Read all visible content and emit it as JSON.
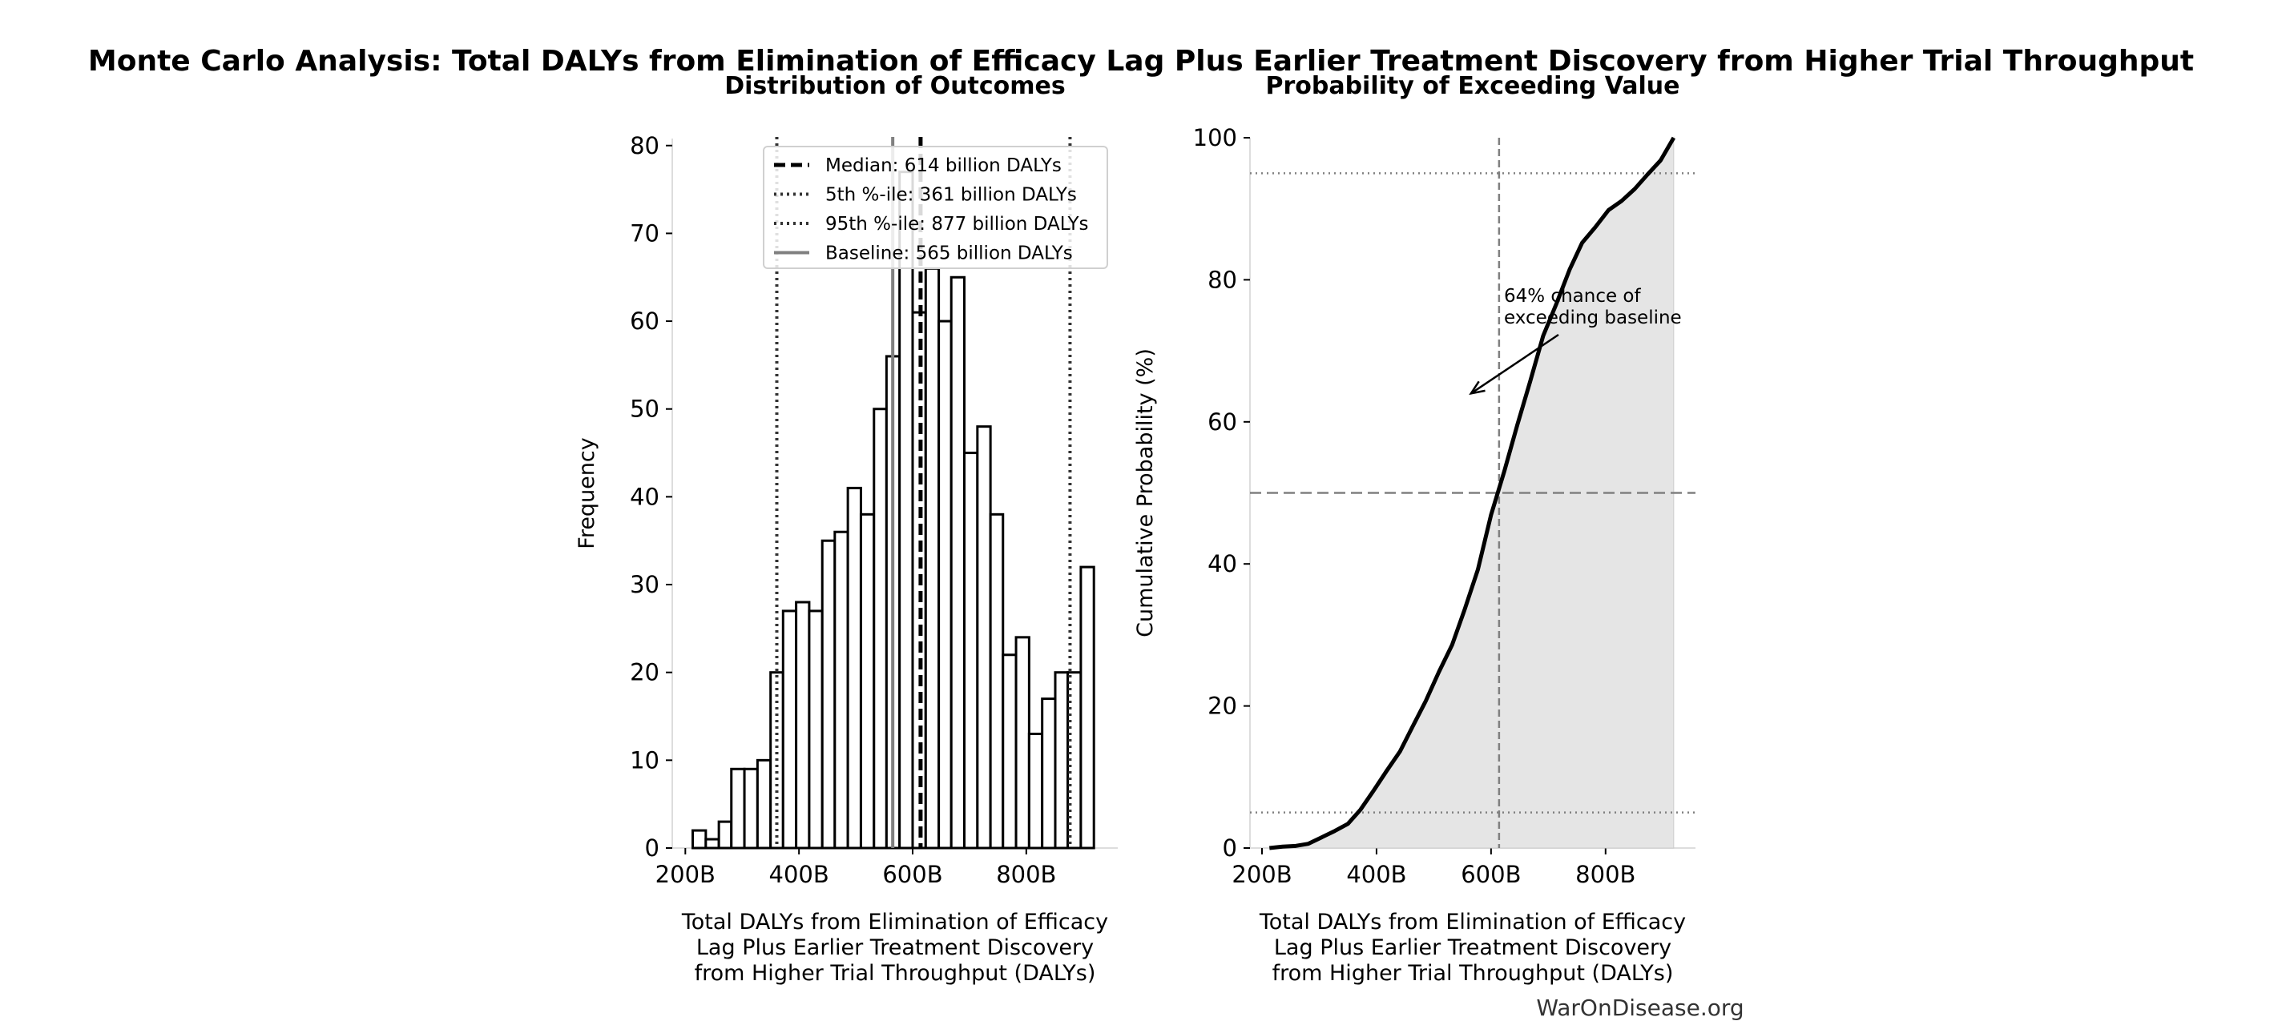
{
  "title": "Monte Carlo Analysis: Total DALYs from Elimination of Efficacy Lag Plus Earlier Treatment Discovery from Higher Trial Throughput",
  "watermark": "WarOnDisease.org",
  "colors": {
    "bar_edge": "#000000",
    "bar_fill": "#ffffff",
    "baseline": "#808080",
    "cdf_fill": "#e5e5e5",
    "ref_lines": "#808080"
  },
  "chart_data": [
    {
      "type": "bar",
      "subtype": "histogram",
      "title": "Distribution of Outcomes",
      "xlabel": "Total DALYs from Elimination of Efficacy Lag Plus Earlier Treatment Discovery from Higher Trial Throughput (DALYs)",
      "ylabel": "Frequency",
      "xlim": [
        177,
        961
      ],
      "ylim": [
        0,
        80.8
      ],
      "xticks": [
        200,
        400,
        600,
        800
      ],
      "xtick_labels": [
        "200B",
        "400B",
        "600B",
        "800B"
      ],
      "yticks": [
        0,
        10,
        20,
        30,
        40,
        50,
        60,
        70,
        80
      ],
      "ytick_labels": [
        "0",
        "10",
        "20",
        "30",
        "40",
        "50",
        "60",
        "70",
        "80"
      ],
      "bin_edges": [
        213,
        236,
        259,
        281,
        304,
        327,
        350,
        372,
        395,
        418,
        441,
        463,
        486,
        509,
        532,
        554,
        577,
        600,
        623,
        646,
        668,
        691,
        714,
        737,
        759,
        782,
        805,
        828,
        851,
        873,
        896,
        919
      ],
      "values": [
        2,
        1,
        3,
        9,
        9,
        10,
        20,
        27,
        28,
        27,
        35,
        36,
        41,
        38,
        50,
        56,
        77,
        61,
        66,
        60,
        65,
        45,
        48,
        38,
        22,
        24,
        13,
        17,
        20,
        20,
        32
      ],
      "vlines": [
        {
          "x": 614,
          "style": "dashed",
          "color": "#000000",
          "label": "Median: 614 billion DALYs"
        },
        {
          "x": 361,
          "style": "dotted",
          "color": "#333333",
          "label": "5th %-ile: 361 billion DALYs"
        },
        {
          "x": 877,
          "style": "dotted",
          "color": "#333333",
          "label": "95th %-ile: 877 billion DALYs"
        },
        {
          "x": 565,
          "style": "solid",
          "color": "#808080",
          "label": "Baseline: 565 billion DALYs"
        }
      ],
      "legend": "top-right",
      "grid": false
    },
    {
      "type": "area",
      "subtype": "cdf",
      "title": "Probability of Exceeding Value",
      "xlabel": "Total DALYs from Elimination of Efficacy Lag Plus Earlier Treatment Discovery from Higher Trial Throughput (DALYs)",
      "ylabel": "Cumulative Probability (%)",
      "xlim": [
        179,
        957
      ],
      "ylim": [
        0,
        100
      ],
      "xticks": [
        200,
        400,
        600,
        800
      ],
      "xtick_labels": [
        "200B",
        "400B",
        "600B",
        "800B"
      ],
      "yticks": [
        0,
        20,
        40,
        60,
        80,
        100
      ],
      "ytick_labels": [
        "0",
        "20",
        "40",
        "60",
        "80",
        "100"
      ],
      "x": [
        213,
        236,
        259,
        281,
        304,
        327,
        350,
        372,
        395,
        418,
        441,
        463,
        486,
        509,
        532,
        554,
        577,
        600,
        623,
        646,
        668,
        691,
        714,
        737,
        759,
        782,
        805,
        828,
        851,
        873,
        896,
        919
      ],
      "y": [
        0,
        0.2,
        0.3,
        0.6,
        1.5,
        2.4,
        3.4,
        5.4,
        8.1,
        10.9,
        13.6,
        17.1,
        20.7,
        24.8,
        28.6,
        33.6,
        39.2,
        46.9,
        53.0,
        59.6,
        65.6,
        72.1,
        76.6,
        81.4,
        85.2,
        87.4,
        89.8,
        91.1,
        92.8,
        94.8,
        96.8,
        100
      ],
      "hlines": [
        {
          "y": 5,
          "style": "dotted"
        },
        {
          "y": 50,
          "style": "dashed"
        },
        {
          "y": 95,
          "style": "dotted"
        }
      ],
      "vlines": [
        {
          "x": 614,
          "style": "dashed"
        }
      ],
      "annotation": {
        "lines": [
          "64% chance of",
          "exceeding baseline"
        ],
        "arrow_to": [
          565,
          64
        ]
      },
      "grid": false
    }
  ]
}
